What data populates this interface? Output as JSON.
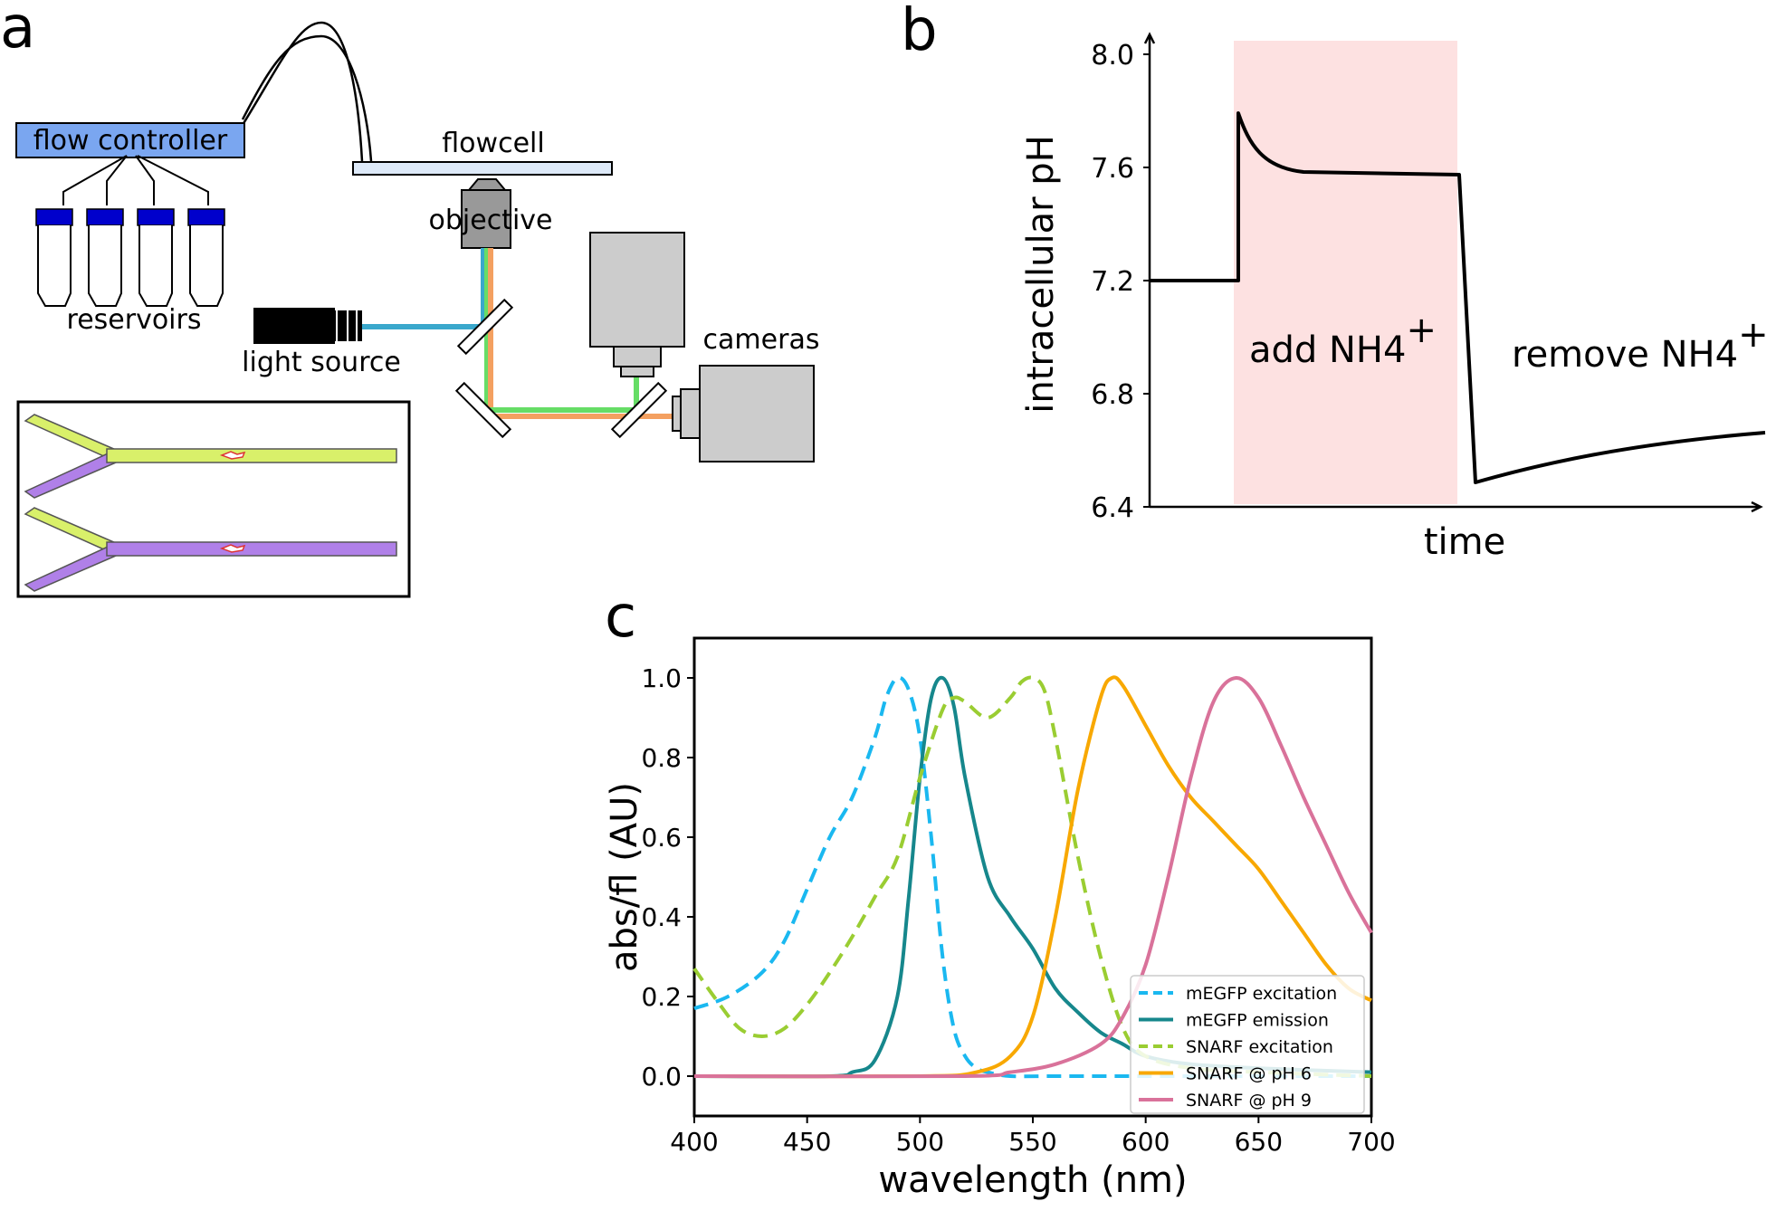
{
  "panels": {
    "a": "a",
    "b": "b",
    "c": "c"
  },
  "panel_a": {
    "flow_controller": "flow controller",
    "flowcell": "flowcell",
    "objective": "objective",
    "reservoirs": "reservoirs",
    "light_source": "light source",
    "cameras": "cameras",
    "colors": {
      "controller": "#7aa6f0",
      "reservoir_cap": "#0000cc",
      "flowcell": "#dde9f8",
      "beam_blue": "#3aa8cc",
      "beam_green": "#66dd66",
      "beam_orange": "#f4a060",
      "camera": "#cccccc",
      "channel_yellow": "#d9f06a",
      "channel_purple": "#b080e8"
    }
  },
  "panel_b": {
    "ylabel": "intracellular pH",
    "xlabel": "time",
    "add_label": "add NH4",
    "remove_label": "remove NH4",
    "superscript": "+",
    "yticks": [
      "8.0",
      "7.6",
      "7.2",
      "6.8",
      "6.4"
    ],
    "shade_color": "#fde1e1"
  },
  "chart_data": {
    "type": "line",
    "title": "",
    "xlabel": "wavelength (nm)",
    "ylabel": "abs/fl (AU)",
    "xlim": [
      400,
      700
    ],
    "ylim": [
      -0.1,
      1.1
    ],
    "xticks": [
      "400",
      "450",
      "500",
      "550",
      "600",
      "650",
      "700"
    ],
    "yticks": [
      "0.0",
      "0.2",
      "0.4",
      "0.6",
      "0.8",
      "1.0"
    ],
    "legend_position": "bottom-right",
    "series": [
      {
        "name": "mEGFP excitation",
        "color": "#1ab8f0",
        "dash": true,
        "x": [
          400,
          415,
          430,
          440,
          450,
          460,
          470,
          480,
          485,
          490,
          495,
          500,
          505,
          510,
          515,
          520,
          525,
          530,
          540,
          560,
          600,
          650,
          700
        ],
        "y": [
          0.17,
          0.2,
          0.26,
          0.34,
          0.47,
          0.6,
          0.7,
          0.85,
          0.95,
          1.0,
          0.97,
          0.85,
          0.6,
          0.3,
          0.12,
          0.05,
          0.02,
          0.01,
          0.0,
          0.0,
          0.0,
          0.0,
          0.0
        ]
      },
      {
        "name": "mEGFP emission",
        "color": "#16878c",
        "dash": false,
        "x": [
          400,
          460,
          470,
          480,
          490,
          495,
          500,
          505,
          510,
          515,
          520,
          530,
          540,
          550,
          560,
          570,
          580,
          590,
          600,
          620,
          650,
          700
        ],
        "y": [
          0.0,
          0.0,
          0.01,
          0.04,
          0.2,
          0.45,
          0.75,
          0.95,
          1.0,
          0.93,
          0.75,
          0.5,
          0.4,
          0.32,
          0.22,
          0.16,
          0.11,
          0.08,
          0.05,
          0.03,
          0.02,
          0.01
        ]
      },
      {
        "name": "SNARF excitation",
        "color": "#9acd32",
        "dash": true,
        "x": [
          400,
          410,
          420,
          430,
          440,
          450,
          460,
          470,
          480,
          490,
          500,
          510,
          515,
          520,
          530,
          540,
          545,
          550,
          555,
          560,
          570,
          580,
          590,
          600,
          620,
          650,
          700
        ],
        "y": [
          0.27,
          0.19,
          0.12,
          0.1,
          0.12,
          0.18,
          0.26,
          0.35,
          0.45,
          0.55,
          0.75,
          0.92,
          0.95,
          0.94,
          0.9,
          0.95,
          0.99,
          1.0,
          0.97,
          0.85,
          0.55,
          0.3,
          0.12,
          0.05,
          0.02,
          0.01,
          0.0
        ]
      },
      {
        "name": "SNARF @ pH 6",
        "color": "#f8a800",
        "dash": false,
        "x": [
          400,
          500,
          525,
          540,
          550,
          560,
          570,
          580,
          585,
          590,
          600,
          610,
          620,
          630,
          640,
          650,
          660,
          670,
          680,
          690,
          700
        ],
        "y": [
          0.0,
          0.0,
          0.01,
          0.05,
          0.15,
          0.4,
          0.72,
          0.95,
          1.0,
          0.98,
          0.88,
          0.78,
          0.7,
          0.64,
          0.58,
          0.52,
          0.44,
          0.36,
          0.28,
          0.22,
          0.19
        ]
      },
      {
        "name": "SNARF @ pH 9",
        "color": "#d9729a",
        "dash": false,
        "x": [
          400,
          520,
          540,
          560,
          580,
          590,
          600,
          610,
          620,
          630,
          640,
          650,
          660,
          670,
          680,
          690,
          700
        ],
        "y": [
          0.0,
          0.0,
          0.01,
          0.03,
          0.08,
          0.15,
          0.28,
          0.5,
          0.75,
          0.94,
          1.0,
          0.95,
          0.83,
          0.7,
          0.58,
          0.46,
          0.36
        ]
      }
    ]
  }
}
